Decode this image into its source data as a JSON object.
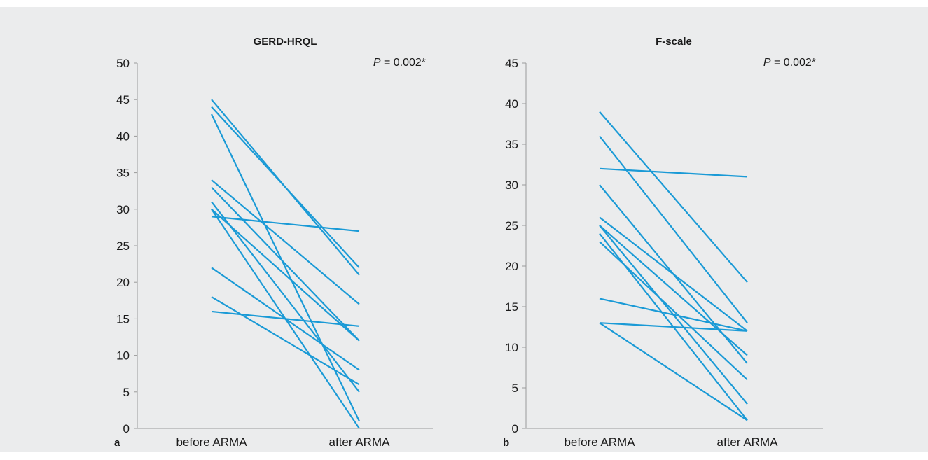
{
  "figure": {
    "background": "#ebeced",
    "line_color": "#1a9ad6",
    "axis_color": "#9a9a9a"
  },
  "chart_data": [
    {
      "type": "line",
      "panel_letter": "a",
      "title": "GERD-HRQL",
      "annotation": {
        "italic": "P",
        "rest": " = 0.002*"
      },
      "categories": [
        "before ARMA",
        "after ARMA"
      ],
      "ylim": [
        0,
        50
      ],
      "yticks": [
        0,
        5,
        10,
        15,
        20,
        25,
        30,
        35,
        40,
        45,
        50
      ],
      "grid": false,
      "series": [
        {
          "values": [
            45,
            21
          ]
        },
        {
          "values": [
            44,
            22
          ]
        },
        {
          "values": [
            43,
            1
          ]
        },
        {
          "values": [
            34,
            17
          ]
        },
        {
          "values": [
            33,
            12
          ]
        },
        {
          "values": [
            31,
            5
          ]
        },
        {
          "values": [
            30,
            12
          ]
        },
        {
          "values": [
            30,
            0
          ]
        },
        {
          "values": [
            29,
            27
          ]
        },
        {
          "values": [
            22,
            8
          ]
        },
        {
          "values": [
            18,
            6
          ]
        },
        {
          "values": [
            16,
            14
          ]
        }
      ]
    },
    {
      "type": "line",
      "panel_letter": "b",
      "title": "F-scale",
      "annotation": {
        "italic": "P",
        "rest": " = 0.002*"
      },
      "categories": [
        "before ARMA",
        "after ARMA"
      ],
      "ylim": [
        0,
        45
      ],
      "yticks": [
        0,
        5,
        10,
        15,
        20,
        25,
        30,
        35,
        40,
        45
      ],
      "grid": false,
      "series": [
        {
          "values": [
            39,
            18
          ]
        },
        {
          "values": [
            36,
            13
          ]
        },
        {
          "values": [
            32,
            31
          ]
        },
        {
          "values": [
            30,
            8
          ]
        },
        {
          "values": [
            26,
            12
          ]
        },
        {
          "values": [
            25,
            9
          ]
        },
        {
          "values": [
            25,
            3
          ]
        },
        {
          "values": [
            24,
            1
          ]
        },
        {
          "values": [
            23,
            6
          ]
        },
        {
          "values": [
            16,
            12
          ]
        },
        {
          "values": [
            13,
            12
          ]
        },
        {
          "values": [
            13,
            1
          ]
        }
      ]
    }
  ]
}
